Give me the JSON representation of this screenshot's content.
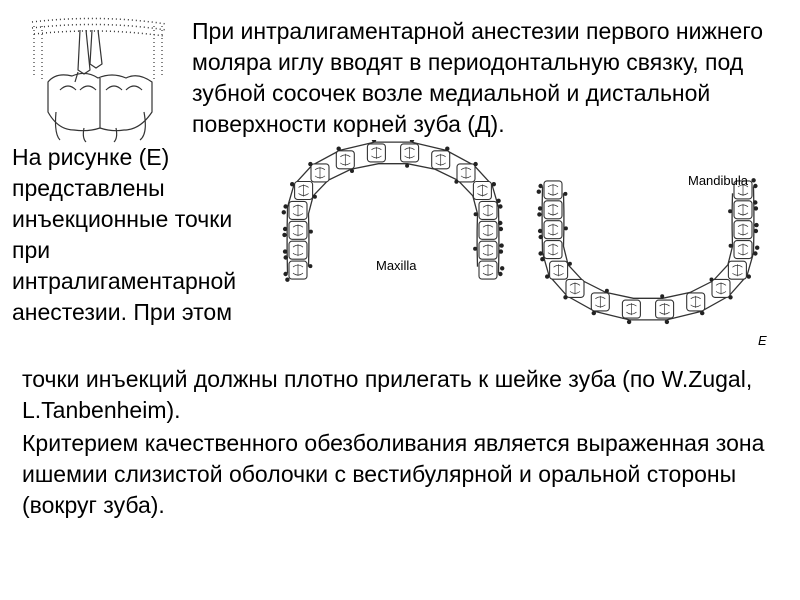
{
  "top_paragraph": "При интралигаментарной анестезии первого нижнего моляра иглу вводят в периодонтальную связку, под зубной сосочек возле медиальной и дистальной поверхности корней зуба (Д).",
  "mid_left_paragraph": "На рисунке (Е) представлены инъекционные точки при интралигаментарной анестезии. При этом",
  "bottom_paragraph_1": "точки инъекций должны плотно прилегать к шейке зуба (по W.Zugal, L.Tanbenheim).",
  "bottom_paragraph_2": " Критерием качественного обезболивания является выраженная зона ишемии слизистой оболочки с вестибулярной и оральной стороны (вокруг зуба).",
  "diagram": {
    "label_left": "Maxilla",
    "label_right": "Mandibula",
    "label_e": "E",
    "stroke": "#333333",
    "dot_fill": "#222222",
    "background": "#ffffff"
  },
  "illustration": {
    "stroke": "#333333",
    "background": "#ffffff"
  }
}
